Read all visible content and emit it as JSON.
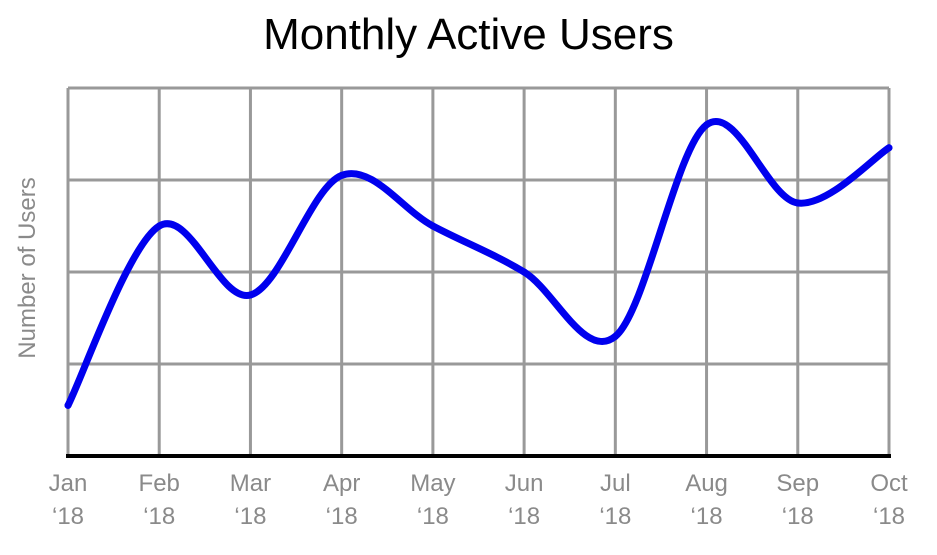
{
  "chart_data": {
    "type": "line",
    "title": "Monthly Active Users",
    "xlabel": "",
    "ylabel": "Number of Users",
    "categories": [
      [
        "Jan",
        "‘18"
      ],
      [
        "Feb",
        "‘18"
      ],
      [
        "Mar",
        "‘18"
      ],
      [
        "Apr",
        "‘18"
      ],
      [
        "May",
        "‘18"
      ],
      [
        "Jun",
        "‘18"
      ],
      [
        "Jul",
        "‘18"
      ],
      [
        "Aug",
        "‘18"
      ],
      [
        "Sep",
        "‘18"
      ],
      [
        "Oct",
        "‘18"
      ]
    ],
    "x": [
      0,
      1,
      2,
      3,
      4,
      5,
      6,
      7,
      8,
      9
    ],
    "series": [
      {
        "values": [
          0.55,
          2.5,
          1.75,
          3.05,
          2.5,
          2.0,
          1.3,
          3.6,
          2.75,
          3.35
        ]
      }
    ],
    "ylim": [
      0,
      4
    ],
    "grid": true,
    "y_tick_labels_shown": false,
    "colors": {
      "line": "#0000ee",
      "grid": "#999999",
      "axis": "#000000",
      "text": "#8a8a8a"
    }
  }
}
